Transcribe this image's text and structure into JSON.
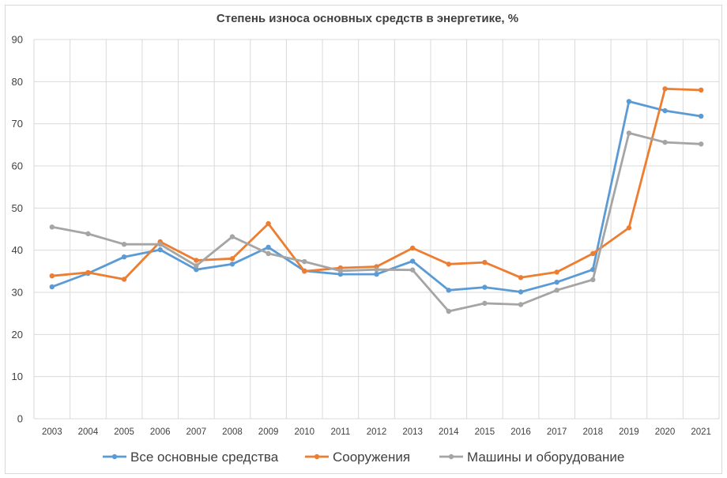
{
  "chart_data": {
    "type": "line",
    "title": "Степень износа основных средств в энергетике, %",
    "xlabel": "",
    "ylabel": "",
    "ylim": [
      0,
      90
    ],
    "yticks": [
      0,
      10,
      20,
      30,
      40,
      50,
      60,
      70,
      80,
      90
    ],
    "grid": true,
    "legend_position": "bottom",
    "categories": [
      "2003",
      "2004",
      "2005",
      "2006",
      "2007",
      "2008",
      "2009",
      "2010",
      "2011",
      "2012",
      "2013",
      "2014",
      "2015",
      "2016",
      "2017",
      "2018",
      "2019",
      "2020",
      "2021"
    ],
    "series": [
      {
        "name": "Все основные средства",
        "color": "#5b9bd5",
        "values": [
          31.3,
          34.5,
          38.4,
          40.1,
          35.4,
          36.7,
          40.7,
          35.1,
          34.3,
          34.3,
          37.4,
          30.5,
          31.2,
          30.1,
          32.4,
          35.4,
          75.3,
          73.1,
          71.8
        ]
      },
      {
        "name": "Сооружения",
        "color": "#ed7d31",
        "values": [
          33.9,
          34.7,
          33.1,
          42.0,
          37.6,
          38.0,
          46.3,
          35.0,
          35.8,
          36.1,
          40.5,
          36.7,
          37.1,
          33.5,
          34.8,
          39.2,
          45.3,
          78.3,
          78.0
        ]
      },
      {
        "name": "Машины и оборудование",
        "color": "#a5a5a5",
        "values": [
          45.5,
          43.9,
          41.4,
          41.4,
          36.3,
          43.2,
          39.2,
          37.3,
          35.1,
          35.4,
          35.3,
          25.5,
          27.4,
          27.1,
          30.5,
          33.0,
          67.8,
          65.6,
          65.2
        ]
      }
    ]
  }
}
